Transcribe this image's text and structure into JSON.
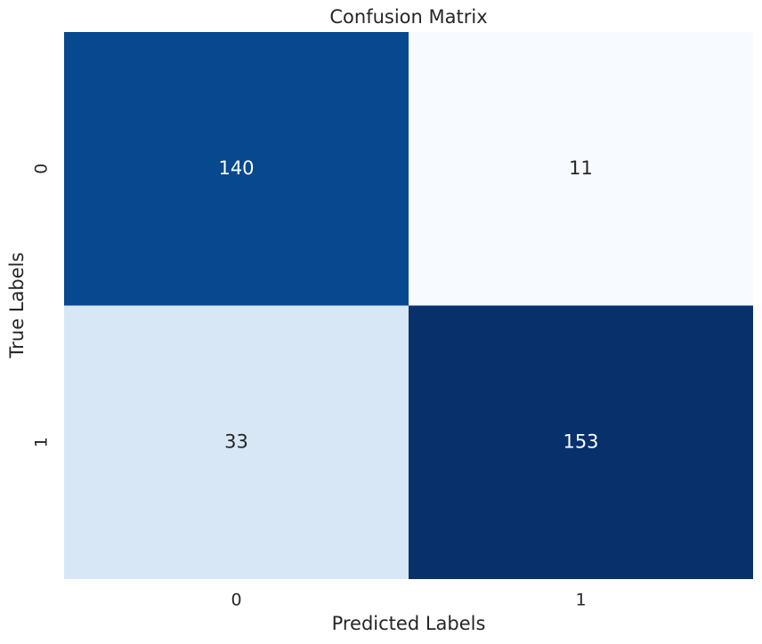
{
  "chart_data": {
    "type": "heatmap",
    "title": "Confusion Matrix",
    "xlabel": "Predicted Labels",
    "ylabel": "True Labels",
    "x_categories": [
      "0",
      "1"
    ],
    "y_categories": [
      "0",
      "1"
    ],
    "values": [
      [
        140,
        11
      ],
      [
        33,
        153
      ]
    ],
    "colormap": [
      "#f7fbff",
      "#deebf7",
      "#c6dbef",
      "#9ecae1",
      "#6baed6",
      "#4292c6",
      "#2171b5",
      "#08519c",
      "#08306b"
    ]
  }
}
